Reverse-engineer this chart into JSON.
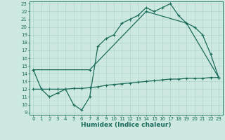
{
  "line1_x": [
    0,
    1,
    2,
    3,
    4,
    5,
    6,
    7,
    8,
    9,
    10,
    11,
    12,
    13,
    14,
    15,
    16,
    17,
    18,
    19,
    20,
    21,
    22,
    23
  ],
  "line1_y": [
    14.5,
    12.0,
    11.0,
    11.5,
    12.0,
    10.0,
    9.3,
    11.0,
    17.5,
    18.5,
    19.0,
    20.5,
    21.0,
    21.5,
    22.5,
    22.0,
    22.5,
    23.0,
    21.5,
    20.5,
    20.0,
    19.0,
    16.5,
    13.5
  ],
  "line2_x": [
    0,
    7,
    14,
    19,
    23
  ],
  "line2_y": [
    14.5,
    14.5,
    22.0,
    20.5,
    13.5
  ],
  "line3_x": [
    0,
    1,
    2,
    3,
    4,
    5,
    6,
    7,
    8,
    9,
    10,
    11,
    12,
    13,
    14,
    15,
    16,
    17,
    18,
    19,
    20,
    21,
    22,
    23
  ],
  "line3_y": [
    12.0,
    12.0,
    12.0,
    12.0,
    12.0,
    12.1,
    12.1,
    12.2,
    12.3,
    12.5,
    12.6,
    12.7,
    12.8,
    12.9,
    13.0,
    13.1,
    13.2,
    13.3,
    13.3,
    13.4,
    13.4,
    13.4,
    13.5,
    13.5
  ],
  "line_color": "#1a6b5a",
  "marker": "+",
  "markersize": 3,
  "linewidth": 0.9,
  "xlabel": "Humidex (Indice chaleur)",
  "xlabel_fontsize": 6.5,
  "bg_color": "#cce8e0",
  "grid_color": "#afd4cc",
  "ylim": [
    8.7,
    23.3
  ],
  "xlim": [
    -0.5,
    23.5
  ],
  "yticks": [
    9,
    10,
    11,
    12,
    13,
    14,
    15,
    16,
    17,
    18,
    19,
    20,
    21,
    22,
    23
  ],
  "xticks": [
    0,
    1,
    2,
    3,
    4,
    5,
    6,
    7,
    8,
    9,
    10,
    11,
    12,
    13,
    14,
    15,
    16,
    17,
    18,
    19,
    20,
    21,
    22,
    23
  ],
  "tick_fontsize": 5.0,
  "tick_color": "#1a6b5a"
}
